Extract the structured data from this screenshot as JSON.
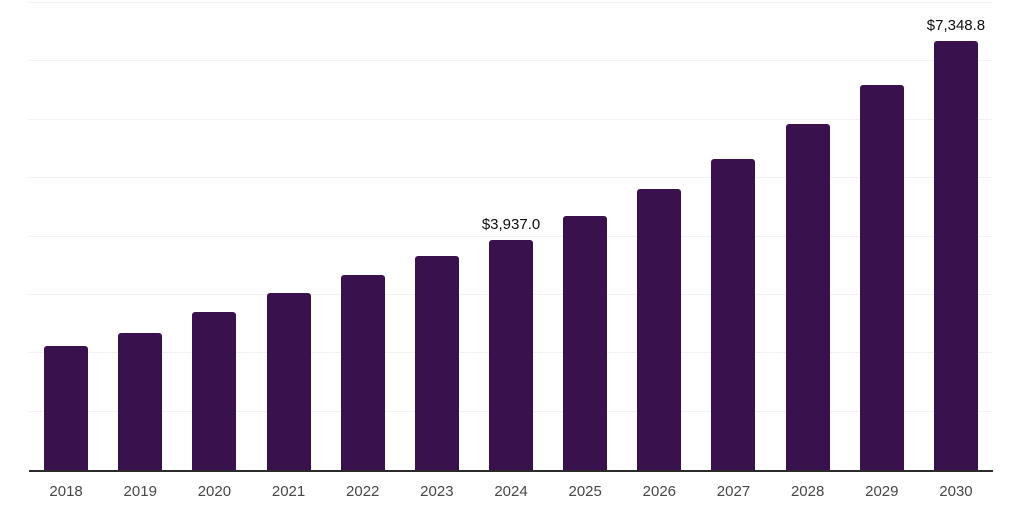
{
  "chart_data": {
    "type": "bar",
    "title": "",
    "xlabel": "",
    "ylabel": "",
    "categories": [
      "2018",
      "2019",
      "2020",
      "2021",
      "2022",
      "2023",
      "2024",
      "2025",
      "2026",
      "2027",
      "2028",
      "2029",
      "2030"
    ],
    "values": [
      2130,
      2350,
      2700,
      3040,
      3340,
      3670,
      3937.0,
      4355,
      4820,
      5335,
      5935,
      6595,
      7348.8
    ],
    "data_labels": [
      {
        "category": "2024",
        "text": "$3,937.0"
      },
      {
        "category": "2030",
        "text": "$7,348.8"
      }
    ],
    "ylim": [
      0,
      8000
    ],
    "gridline_step": 1000,
    "grid": true,
    "legend_position": "none",
    "colors": {
      "bar-fill": "#38114d",
      "gridline": "#f2f2f2",
      "axis-line": "#2b2b2b",
      "tick-label": "#474747",
      "data-label": "#0d0d0d",
      "background": "#ffffff"
    }
  }
}
